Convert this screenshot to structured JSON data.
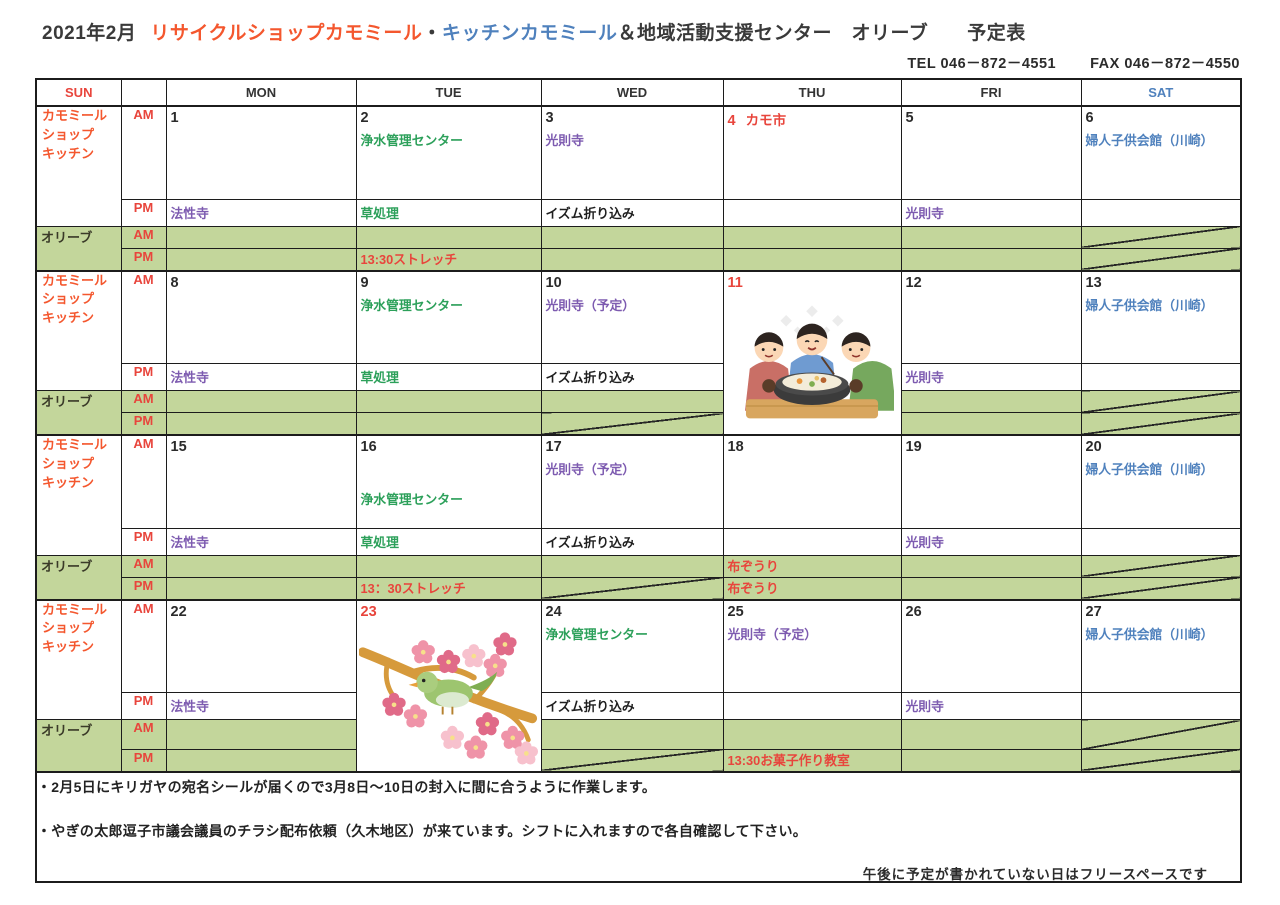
{
  "title": {
    "month": "2021年2月",
    "shop1": "リサイクルショップカモミール",
    "sep": "・",
    "shop2": "キッチンカモミール",
    "rest": "＆地域活動支援センター　オリーブ　　予定表"
  },
  "contact": {
    "tel": "TEL 046－872－4551",
    "fax": "FAX 046－872－4550"
  },
  "colors": {
    "red": "#e8453c",
    "orange": "#f4572e",
    "green": "#2ca05a",
    "purple": "#7d5bb0",
    "blue": "#4f81bd",
    "black": "#1f1f1f",
    "olive_bg": "#c3d69b",
    "olive_label": "#3a3a28",
    "header_text": "#333333"
  },
  "day_headers": [
    {
      "label": "SUN",
      "color": "#e8453c"
    },
    {
      "label": "",
      "color": "#333333"
    },
    {
      "label": "MON",
      "color": "#333333"
    },
    {
      "label": "TUE",
      "color": "#333333"
    },
    {
      "label": "WED",
      "color": "#333333"
    },
    {
      "label": "THU",
      "color": "#333333"
    },
    {
      "label": "FRI",
      "color": "#333333"
    },
    {
      "label": "SAT",
      "color": "#4f81bd"
    }
  ],
  "row_labels": {
    "shop": [
      "カモミール",
      "ショップ",
      "キッチン"
    ],
    "olive": "オリーブ",
    "am": "AM",
    "pm": "PM"
  },
  "weeks": [
    {
      "days": [
        {
          "num": "1",
          "pm": {
            "text": "法性寺",
            "color": "purple"
          }
        },
        {
          "num": "2",
          "am": {
            "text": "浄水管理センター",
            "color": "green"
          },
          "pm": {
            "text": "草処理",
            "color": "green"
          },
          "olive_pm": {
            "text": "13:30ストレッチ",
            "color": "red"
          }
        },
        {
          "num": "3",
          "am": {
            "text": "光則寺",
            "color": "purple"
          },
          "pm": {
            "text": "イズム折り込み",
            "color": "black"
          }
        },
        {
          "num": "4",
          "num_color": "red",
          "num_note": {
            "text": "カモ市",
            "color": "red"
          }
        },
        {
          "num": "5",
          "pm": {
            "text": "光則寺",
            "color": "purple"
          }
        },
        {
          "num": "6",
          "am": {
            "text": "婦人子供会館（川崎）",
            "color": "blue"
          },
          "olive_am_slash": true,
          "olive_pm_slash": true
        }
      ]
    },
    {
      "days": [
        {
          "num": "8",
          "pm": {
            "text": "法性寺",
            "color": "purple"
          }
        },
        {
          "num": "9",
          "am": {
            "text": "浄水管理センター",
            "color": "green"
          },
          "pm": {
            "text": "草処理",
            "color": "green"
          }
        },
        {
          "num": "10",
          "am": {
            "text": "光則寺（予定）",
            "color": "purple"
          },
          "pm": {
            "text": "イズム折り込み",
            "color": "black"
          },
          "olive_pm_slash": true
        },
        {
          "num": "11",
          "num_color": "red",
          "holiday": "nabe"
        },
        {
          "num": "12",
          "pm": {
            "text": "光則寺",
            "color": "purple"
          }
        },
        {
          "num": "13",
          "am": {
            "text": "婦人子供会館（川崎）",
            "color": "blue"
          },
          "olive_am_slash": true,
          "olive_pm_slash": true
        }
      ]
    },
    {
      "days": [
        {
          "num": "15",
          "pm": {
            "text": "法性寺",
            "color": "purple"
          }
        },
        {
          "num": "16",
          "am": {
            "text": "浄水管理センター",
            "color": "green",
            "low": true
          },
          "pm": {
            "text": "草処理",
            "color": "green"
          },
          "olive_pm": {
            "text": "13：30ストレッチ",
            "color": "red"
          }
        },
        {
          "num": "17",
          "am": {
            "text": "光則寺（予定）",
            "color": "purple"
          },
          "pm": {
            "text": "イズム折り込み",
            "color": "black"
          },
          "olive_pm_slash": true
        },
        {
          "num": "18",
          "olive_am": {
            "text": "布ぞうり",
            "color": "red"
          },
          "olive_pm": {
            "text": "布ぞうり",
            "color": "red"
          }
        },
        {
          "num": "19",
          "pm": {
            "text": "光則寺",
            "color": "purple"
          }
        },
        {
          "num": "20",
          "am": {
            "text": "婦人子供会館（川崎）",
            "color": "blue"
          },
          "olive_am_slash": true,
          "olive_pm_slash": true
        }
      ]
    },
    {
      "days": [
        {
          "num": "22",
          "pm": {
            "text": "法性寺",
            "color": "purple"
          }
        },
        {
          "num": "23",
          "num_color": "red",
          "holiday": "plum"
        },
        {
          "num": "24",
          "am": {
            "text": "浄水管理センター",
            "color": "green"
          },
          "pm": {
            "text": "イズム折り込み",
            "color": "black"
          },
          "olive_pm_slash": true
        },
        {
          "num": "25",
          "am": {
            "text": "光則寺（予定）",
            "color": "purple"
          },
          "olive_pm": {
            "text": "13:30お菓子作り教室",
            "color": "red"
          }
        },
        {
          "num": "26",
          "pm": {
            "text": "光則寺",
            "color": "purple"
          }
        },
        {
          "num": "27",
          "am": {
            "text": "婦人子供会館（川崎）",
            "color": "blue"
          },
          "olive_am_slash": true,
          "olive_pm_slash": true
        }
      ]
    }
  ],
  "notes": [
    "・2月5日にキリガヤの宛名シールが届くので3月8日～10日の封入に間に合うように作業します。",
    "・やぎの太郎逗子市議会議員のチラシ配布依頼（久木地区）が来ています。シフトに入れますので各自確認して下さい。"
  ],
  "footnote": "午後に予定が書かれていない日はフリースペースです",
  "illustrations": {
    "nabe": "three-people-eating-hotpot",
    "plum": "plum-blossom-branch-with-bird"
  }
}
